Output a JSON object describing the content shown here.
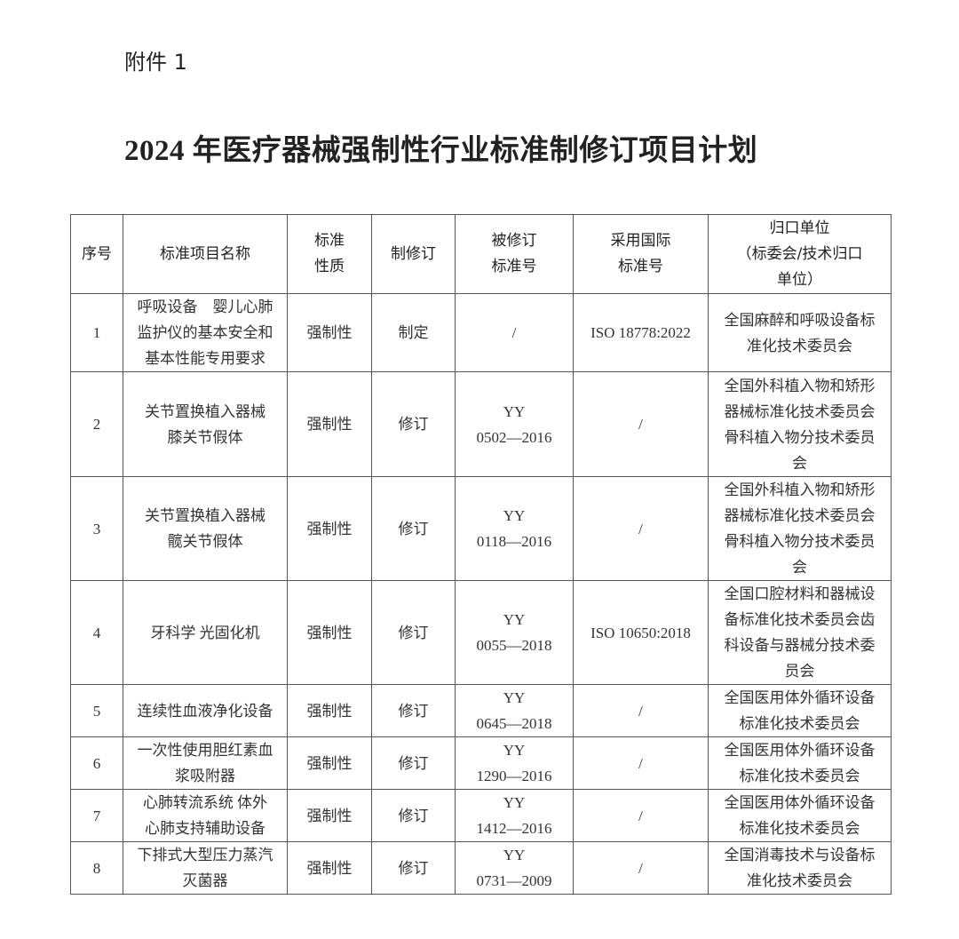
{
  "attachment_label": "附件 1",
  "title": "2024 年医疗器械强制性行业标准制修订项目计划",
  "table": {
    "headers": [
      "序号",
      "标准项目名称",
      "标准\n性质",
      "制修订",
      "被修订\n标准号",
      "采用国际\n标准号",
      "归口单位\n（标委会/技术归口\n单位）"
    ],
    "rows": [
      [
        "1",
        "呼吸设备　婴儿心肺\n监护仪的基本安全和\n基本性能专用要求",
        "强制性",
        "制定",
        "/",
        "ISO 18778:2022",
        "全国麻醉和呼吸设备标\n准化技术委员会"
      ],
      [
        "2",
        "关节置换植入器械\n膝关节假体",
        "强制性",
        "修订",
        "YY\n0502—2016",
        "/",
        "全国外科植入物和矫形\n器械标准化技术委员会\n骨科植入物分技术委员\n会"
      ],
      [
        "3",
        "关节置换植入器械\n髋关节假体",
        "强制性",
        "修订",
        "YY\n0118—2016",
        "/",
        "全国外科植入物和矫形\n器械标准化技术委员会\n骨科植入物分技术委员\n会"
      ],
      [
        "4",
        "牙科学  光固化机",
        "强制性",
        "修订",
        "YY\n0055—2018",
        "ISO 10650:2018",
        "全国口腔材料和器械设\n备标准化技术委员会齿\n科设备与器械分技术委\n员会"
      ],
      [
        "5",
        "连续性血液净化设备",
        "强制性",
        "修订",
        "YY\n0645—2018",
        "/",
        "全国医用体外循环设备\n标准化技术委员会"
      ],
      [
        "6",
        "一次性使用胆红素血\n浆吸附器",
        "强制性",
        "修订",
        "YY\n1290—2016",
        "/",
        "全国医用体外循环设备\n标准化技术委员会"
      ],
      [
        "7",
        "心肺转流系统  体外\n心肺支持辅助设备",
        "强制性",
        "修订",
        "YY\n1412—2016",
        "/",
        "全国医用体外循环设备\n标准化技术委员会"
      ],
      [
        "8",
        "下排式大型压力蒸汽\n灭菌器",
        "强制性",
        "修订",
        "YY\n0731—2009",
        "/",
        "全国消毒技术与设备标\n准化技术委员会"
      ]
    ]
  }
}
